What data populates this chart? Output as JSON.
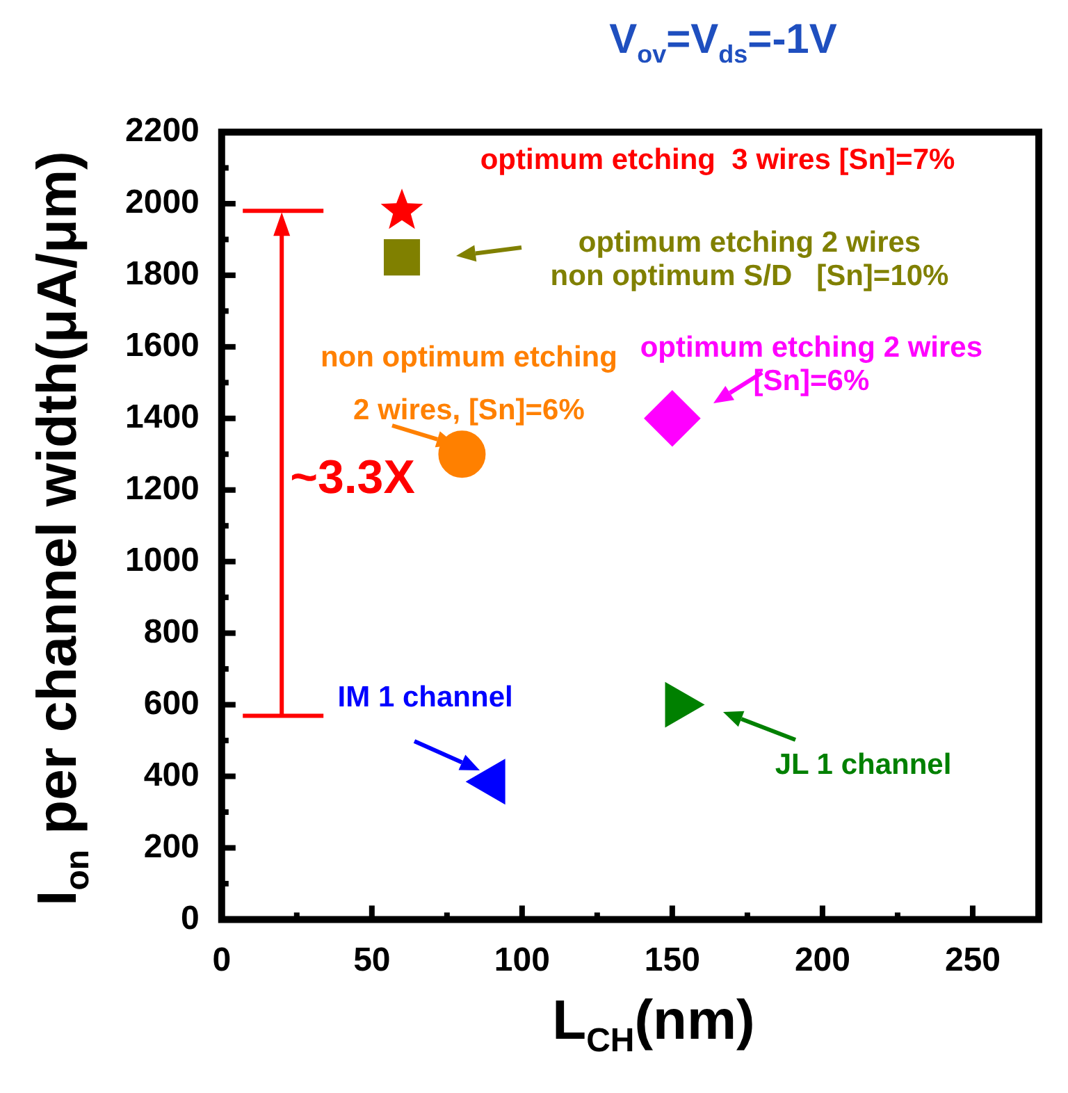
{
  "chart_data": {
    "type": "scatter",
    "title": "V$_{ov}$=V$_{ds}$=-1V",
    "xlabel": "L$_{CH}$(nm)",
    "ylabel": "I$_{on}$ per channel width(μA/μm)",
    "xlim": [
      0,
      272
    ],
    "xticks": [
      0,
      50,
      100,
      150,
      200,
      250
    ],
    "ylim": [
      0,
      2200
    ],
    "yticks": [
      0,
      200,
      400,
      600,
      800,
      1000,
      1200,
      1400,
      1600,
      1800,
      2000,
      2200
    ],
    "legend": false,
    "series": [
      {
        "color": "#ff0000",
        "marker": "star",
        "x": [
          60
        ],
        "values": [
          1980
        ]
      },
      {
        "color": "#808000",
        "marker": "square",
        "x": [
          60
        ],
        "values": [
          1850
        ]
      },
      {
        "color": "#ff00ff",
        "marker": "diamond",
        "x": [
          150
        ],
        "values": [
          1400
        ]
      },
      {
        "color": "#ff8000",
        "marker": "circle",
        "x": [
          80
        ],
        "values": [
          1300
        ]
      },
      {
        "color": "#0000ff",
        "marker": "triangle",
        "x": [
          90
        ],
        "values": [
          385
        ]
      },
      {
        "color": "#008000",
        "marker": "triangle",
        "x": [
          152
        ],
        "values": [
          600
        ]
      }
    ],
    "annotations": [
      "optimum etching  3 wires [Sn]=7%",
      "optimum etching 2 wires\nnon optimum S/D   [Sn]=10%",
      "optimum etching 2 wires\n[Sn]=6%",
      "non optimum etching\n2 wires, [Sn]=6%",
      "IM 1 channel",
      "JL 1 channel",
      "~3.3X"
    ]
  }
}
